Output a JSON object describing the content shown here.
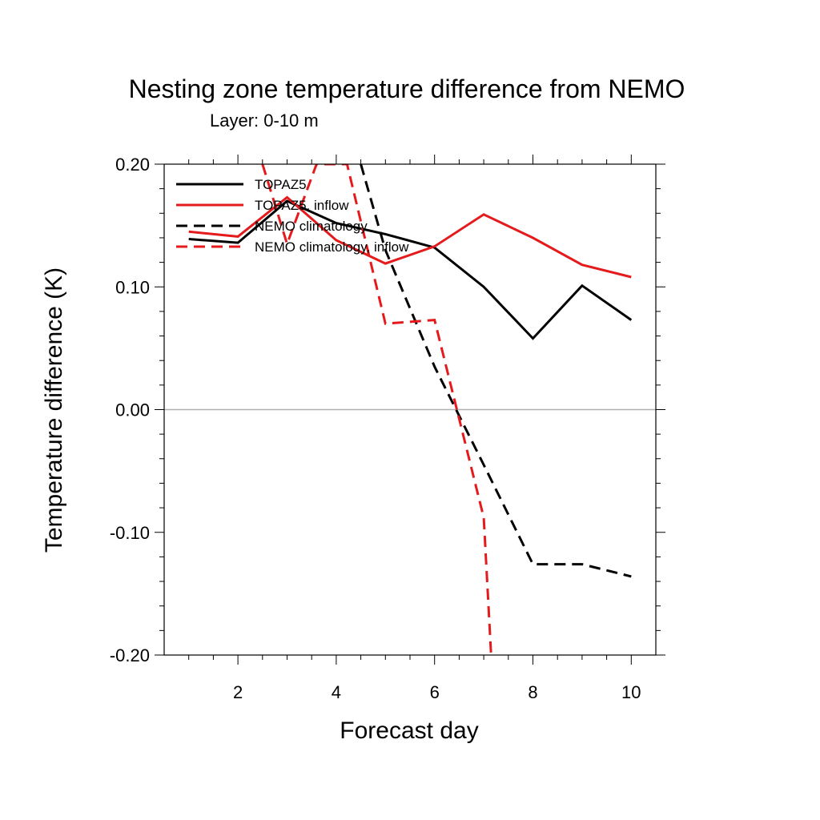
{
  "chart_data": {
    "type": "line",
    "title": "Nesting zone temperature difference from NEMO",
    "subtitle": "Layer: 0-10 m",
    "xlabel": "Forecast day",
    "ylabel": "Temperature difference (K)",
    "xlim": [
      0.5,
      10.5
    ],
    "ylim": [
      -0.2,
      0.2
    ],
    "xticks": [
      2,
      4,
      6,
      8,
      10
    ],
    "xtick_labels": [
      "2",
      "4",
      "6",
      "8",
      "10"
    ],
    "yticks": [
      -0.2,
      -0.1,
      0.0,
      0.1,
      0.2
    ],
    "ytick_labels": [
      "-0.20",
      "-0.10",
      "0.00",
      "0.10",
      "0.20"
    ],
    "reference_line": 0.0,
    "legend_position": "top-left",
    "series": [
      {
        "name": "TOPAZ5",
        "color": "#000000",
        "dash": "solid",
        "x": [
          1,
          2,
          3,
          4,
          5,
          6,
          7,
          8,
          9,
          10
        ],
        "y": [
          0.139,
          0.136,
          0.17,
          0.152,
          0.143,
          0.132,
          0.1,
          0.058,
          0.101,
          0.073
        ]
      },
      {
        "name": "TOPAZ5, inflow",
        "color": "#e41a1c",
        "dash": "solid",
        "x": [
          1,
          2,
          3,
          4,
          5,
          6,
          7,
          8,
          9,
          10
        ],
        "y": [
          0.145,
          0.141,
          0.173,
          0.138,
          0.119,
          0.133,
          0.159,
          0.14,
          0.118,
          0.108
        ]
      },
      {
        "name": "NEMO climatology",
        "color": "#000000",
        "dash": "dashed",
        "x": [
          4.5,
          5,
          6,
          7,
          8,
          9,
          10
        ],
        "y": [
          0.2,
          0.13,
          0.035,
          -0.045,
          -0.126,
          -0.126,
          -0.136
        ]
      },
      {
        "name": "NEMO climatology, inflow",
        "color": "#e41a1c",
        "dash": "dashed",
        "x": [
          2.5,
          3,
          3.6,
          4.22,
          5,
          6,
          7,
          7.15
        ],
        "y": [
          0.2,
          0.135,
          0.2,
          0.2,
          0.07,
          0.073,
          -0.088,
          -0.2
        ]
      }
    ]
  }
}
